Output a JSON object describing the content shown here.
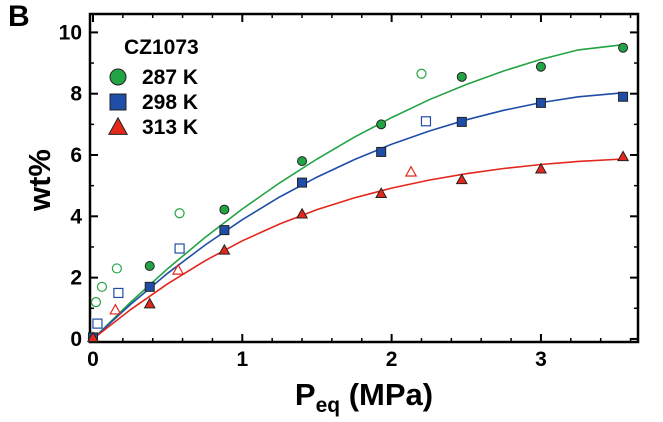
{
  "panel_label": "B",
  "chart_data": {
    "type": "scatter",
    "annotation": "CZ1073",
    "xlabel": {
      "main": "P",
      "sub": "eq",
      "rest": " (MPa)"
    },
    "ylabel": "wt%",
    "xlim": [
      -0.02,
      3.65
    ],
    "ylim": [
      -0.1,
      10.6
    ],
    "x_ticks": [
      0,
      1,
      2,
      3
    ],
    "x_tick_labels": [
      "0",
      "1",
      "2",
      "3"
    ],
    "y_ticks": [
      0,
      2,
      4,
      6,
      8,
      10
    ],
    "y_tick_labels": [
      "0",
      "2",
      "4",
      "6",
      "8",
      "10"
    ],
    "grid": false,
    "legend_position": "top-left",
    "series": [
      {
        "name": "287 K",
        "color": "#22a344",
        "marker": "circle",
        "adsorption": {
          "x": [
            0.0,
            0.38,
            0.88,
            1.4,
            1.93,
            2.47,
            3.0,
            3.55
          ],
          "y": [
            0.05,
            2.38,
            4.22,
            5.8,
            7.0,
            8.55,
            8.88,
            9.5
          ]
        },
        "desorption": {
          "x": [
            0.02,
            0.06,
            0.16,
            0.58,
            2.2
          ],
          "y": [
            1.2,
            1.7,
            2.3,
            4.1,
            8.65
          ]
        },
        "fit": {
          "x": [
            0,
            0.25,
            0.5,
            0.75,
            1.0,
            1.25,
            1.5,
            1.75,
            2.0,
            2.25,
            2.5,
            2.75,
            3.0,
            3.25,
            3.55
          ],
          "y": [
            0.0,
            1.19,
            2.29,
            3.31,
            4.24,
            5.09,
            5.87,
            6.58,
            7.22,
            7.8,
            8.3,
            8.74,
            9.12,
            9.43,
            9.6
          ]
        }
      },
      {
        "name": "298 K",
        "color": "#1f4ea8",
        "marker": "square",
        "adsorption": {
          "x": [
            0.0,
            0.38,
            0.88,
            1.4,
            1.93,
            2.47,
            3.0,
            3.55
          ],
          "y": [
            0.05,
            1.7,
            3.55,
            5.1,
            6.1,
            7.08,
            7.7,
            7.9
          ]
        },
        "desorption": {
          "x": [
            0.03,
            0.17,
            0.58,
            2.23
          ],
          "y": [
            0.5,
            1.5,
            2.95,
            7.1
          ]
        },
        "fit": {
          "x": [
            0,
            0.25,
            0.5,
            0.75,
            1.0,
            1.25,
            1.5,
            1.75,
            2.0,
            2.25,
            2.5,
            2.75,
            3.0,
            3.25,
            3.55
          ],
          "y": [
            0.0,
            1.12,
            2.14,
            3.06,
            3.89,
            4.63,
            5.28,
            5.85,
            6.35,
            6.78,
            7.15,
            7.46,
            7.71,
            7.9,
            8.03
          ]
        }
      },
      {
        "name": "313 K",
        "color": "#e2271c",
        "marker": "triangle",
        "adsorption": {
          "x": [
            0.0,
            0.38,
            0.88,
            1.4,
            1.93,
            2.47,
            3.0,
            3.55
          ],
          "y": [
            0.05,
            1.15,
            2.9,
            4.08,
            4.75,
            5.2,
            5.55,
            5.95
          ]
        },
        "desorption": {
          "x": [
            0.15,
            0.57,
            2.13
          ],
          "y": [
            0.95,
            2.25,
            5.45
          ]
        },
        "fit": {
          "x": [
            0,
            0.25,
            0.5,
            0.75,
            1.0,
            1.25,
            1.5,
            1.75,
            2.0,
            2.25,
            2.5,
            2.75,
            3.0,
            3.25,
            3.55
          ],
          "y": [
            0.0,
            0.95,
            1.8,
            2.55,
            3.2,
            3.75,
            4.22,
            4.6,
            4.92,
            5.18,
            5.39,
            5.56,
            5.69,
            5.79,
            5.87
          ]
        }
      }
    ]
  }
}
